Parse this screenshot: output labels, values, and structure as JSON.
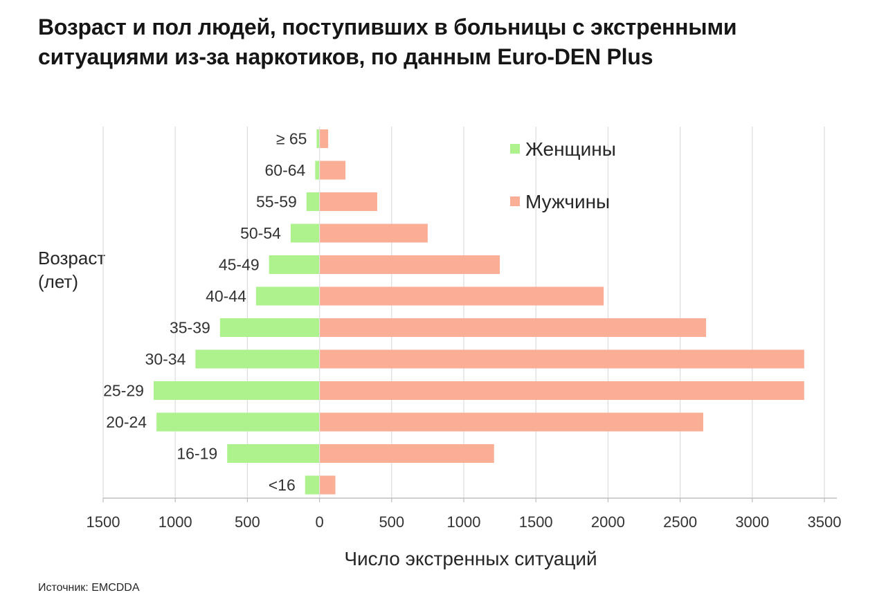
{
  "chart_data": {
    "type": "bar",
    "orientation": "horizontal",
    "layout": "population-pyramid",
    "title": "Возраст и пол людей, поступивших в больницы с экстренными ситуациями из-за наркотиков, по данным Euro-DEN Plus",
    "xlabel": "Число экстренных ситуаций",
    "ylabel_lines": [
      "Возраст",
      "(лет)"
    ],
    "categories": [
      "<16",
      "16-19",
      "20-24",
      "25-29",
      "30-34",
      "35-39",
      "40-44",
      "45-49",
      "50-54",
      "55-59",
      "60-64",
      "≥ 65"
    ],
    "series": [
      {
        "name": "Женщины",
        "color": "#adf28c",
        "direction": "left",
        "values": [
          100,
          640,
          1130,
          1150,
          860,
          690,
          440,
          350,
          200,
          90,
          30,
          20
        ]
      },
      {
        "name": "Мужчины",
        "color": "#f9ae95",
        "direction": "right",
        "values": [
          110,
          1210,
          2660,
          3360,
          3360,
          2680,
          1970,
          1250,
          750,
          400,
          180,
          60
        ]
      }
    ],
    "xlim": [
      -1500,
      3500
    ],
    "xticks": [
      -1500,
      -1000,
      -500,
      0,
      500,
      1000,
      1500,
      2000,
      2500,
      3000,
      3500
    ],
    "xtick_labels": [
      "1500",
      "1000",
      "500",
      "0",
      "500",
      "1000",
      "1500",
      "2000",
      "2500",
      "3000",
      "3500"
    ],
    "grid": "vertical",
    "legend": "top-right"
  },
  "source": "Источник: EMCDDA"
}
